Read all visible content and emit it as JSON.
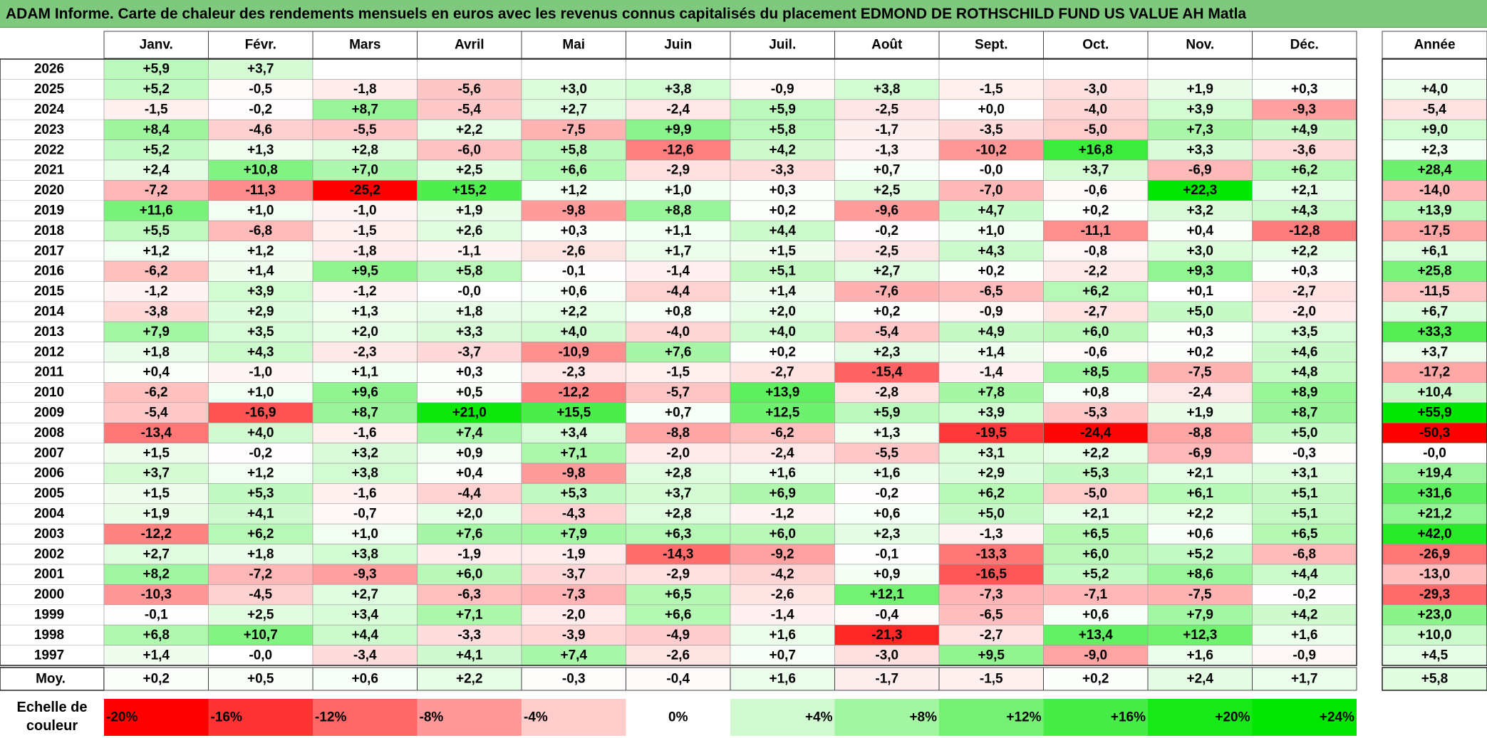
{
  "title": "ADAM Informe. Carte de chaleur des rendements mensuels en euros avec les revenus connus capitalisés du placement EDMOND DE ROTHSCHILD FUND US VALUE AH Matla",
  "year_header": "Année",
  "scale_label": "Echelle de couleur",
  "colors": {
    "negative_max": "#ff0000",
    "positive_max": "#00dd00",
    "neutral": "#ffffff",
    "title_bg": "#7ec97e"
  },
  "chart_data": {
    "type": "heatmap",
    "months": [
      "Janv.",
      "Févr.",
      "Mars",
      "Avril",
      "Mai",
      "Juin",
      "Juil.",
      "Août",
      "Sept.",
      "Oct.",
      "Nov.",
      "Déc."
    ],
    "rows": [
      {
        "year": "2026",
        "values": [
          "+5,9",
          "+3,7",
          "",
          "",
          "",
          "",
          "",
          "",
          "",
          "",
          "",
          ""
        ],
        "annual": ""
      },
      {
        "year": "2025",
        "values": [
          "+5,2",
          "-0,5",
          "-1,8",
          "-5,6",
          "+3,0",
          "+3,8",
          "-0,9",
          "+3,8",
          "-1,5",
          "-3,0",
          "+1,9",
          "+0,3"
        ],
        "annual": "+4,0"
      },
      {
        "year": "2024",
        "values": [
          "-1,5",
          "-0,2",
          "+8,7",
          "-5,4",
          "+2,7",
          "-2,4",
          "+5,9",
          "-2,5",
          "+0,0",
          "-4,0",
          "+3,9",
          "-9,3"
        ],
        "annual": "-5,4"
      },
      {
        "year": "2023",
        "values": [
          "+8,4",
          "-4,6",
          "-5,5",
          "+2,2",
          "-7,5",
          "+9,9",
          "+5,8",
          "-1,7",
          "-3,5",
          "-5,0",
          "+7,3",
          "+4,9"
        ],
        "annual": "+9,0"
      },
      {
        "year": "2022",
        "values": [
          "+5,2",
          "+1,3",
          "+2,8",
          "-6,0",
          "+5,8",
          "-12,6",
          "+4,2",
          "-1,3",
          "-10,2",
          "+16,8",
          "+3,3",
          "-3,6"
        ],
        "annual": "+2,3"
      },
      {
        "year": "2021",
        "values": [
          "+2,4",
          "+10,8",
          "+7,0",
          "+2,5",
          "+6,6",
          "-2,9",
          "-3,3",
          "+0,7",
          "-0,0",
          "+3,7",
          "-6,9",
          "+6,2"
        ],
        "annual": "+28,4"
      },
      {
        "year": "2020",
        "values": [
          "-7,2",
          "-11,3",
          "-25,2",
          "+15,2",
          "+1,2",
          "+1,0",
          "+0,3",
          "+2,5",
          "-7,0",
          "-0,6",
          "+22,3",
          "+2,1"
        ],
        "annual": "-14,0"
      },
      {
        "year": "2019",
        "values": [
          "+11,6",
          "+1,0",
          "-1,0",
          "+1,9",
          "-9,8",
          "+8,8",
          "+0,2",
          "-9,6",
          "+4,7",
          "+0,2",
          "+3,2",
          "+4,3"
        ],
        "annual": "+13,9"
      },
      {
        "year": "2018",
        "values": [
          "+5,5",
          "-6,8",
          "-1,5",
          "+2,6",
          "+0,3",
          "+1,1",
          "+4,4",
          "-0,2",
          "+1,0",
          "-11,1",
          "+0,4",
          "-12,8"
        ],
        "annual": "-17,5"
      },
      {
        "year": "2017",
        "values": [
          "+1,2",
          "+1,2",
          "-1,8",
          "-1,1",
          "-2,6",
          "+1,7",
          "+1,5",
          "-2,5",
          "+4,3",
          "-0,8",
          "+3,0",
          "+2,2"
        ],
        "annual": "+6,1"
      },
      {
        "year": "2016",
        "values": [
          "-6,2",
          "+1,4",
          "+9,5",
          "+5,8",
          "-0,1",
          "-1,4",
          "+5,1",
          "+2,7",
          "+0,2",
          "-2,2",
          "+9,3",
          "+0,3"
        ],
        "annual": "+25,8"
      },
      {
        "year": "2015",
        "values": [
          "-1,2",
          "+3,9",
          "-1,2",
          "-0,0",
          "+0,6",
          "-4,4",
          "+1,4",
          "-7,6",
          "-6,5",
          "+6,2",
          "+0,1",
          "-2,7"
        ],
        "annual": "-11,5"
      },
      {
        "year": "2014",
        "values": [
          "-3,8",
          "+2,9",
          "+1,3",
          "+1,8",
          "+2,2",
          "+0,8",
          "+2,0",
          "+0,2",
          "-0,9",
          "-2,7",
          "+5,0",
          "-2,0"
        ],
        "annual": "+6,7"
      },
      {
        "year": "2013",
        "values": [
          "+7,9",
          "+3,5",
          "+2,0",
          "+3,3",
          "+4,0",
          "-4,0",
          "+4,0",
          "-5,4",
          "+4,9",
          "+6,0",
          "+0,3",
          "+3,5"
        ],
        "annual": "+33,3"
      },
      {
        "year": "2012",
        "values": [
          "+1,8",
          "+4,3",
          "-2,3",
          "-3,7",
          "-10,9",
          "+7,6",
          "+0,2",
          "+2,3",
          "+1,4",
          "-0,6",
          "+0,2",
          "+4,6"
        ],
        "annual": "+3,7"
      },
      {
        "year": "2011",
        "values": [
          "+0,4",
          "-1,0",
          "+1,1",
          "+0,3",
          "-2,3",
          "-1,5",
          "-2,7",
          "-15,4",
          "-1,4",
          "+8,5",
          "-7,5",
          "+4,8"
        ],
        "annual": "-17,2"
      },
      {
        "year": "2010",
        "values": [
          "-6,2",
          "+1,0",
          "+9,6",
          "+0,5",
          "-12,2",
          "-5,7",
          "+13,9",
          "-2,8",
          "+7,8",
          "+0,8",
          "-2,4",
          "+8,9"
        ],
        "annual": "+10,4"
      },
      {
        "year": "2009",
        "values": [
          "-5,4",
          "-16,9",
          "+8,7",
          "+21,0",
          "+15,5",
          "+0,7",
          "+12,5",
          "+5,9",
          "+3,9",
          "-5,3",
          "+1,9",
          "+8,7"
        ],
        "annual": "+55,9"
      },
      {
        "year": "2008",
        "values": [
          "-13,4",
          "+4,0",
          "-1,6",
          "+7,4",
          "+3,4",
          "-8,8",
          "-6,2",
          "+1,3",
          "-19,5",
          "-24,4",
          "-8,8",
          "+5,0"
        ],
        "annual": "-50,3"
      },
      {
        "year": "2007",
        "values": [
          "+1,5",
          "-0,2",
          "+3,2",
          "+0,9",
          "+7,1",
          "-2,0",
          "-2,4",
          "-5,5",
          "+3,1",
          "+2,2",
          "-6,9",
          "-0,3"
        ],
        "annual": "-0,0"
      },
      {
        "year": "2006",
        "values": [
          "+3,7",
          "+1,2",
          "+3,8",
          "+0,4",
          "-9,8",
          "+2,8",
          "+1,6",
          "+1,6",
          "+2,9",
          "+5,3",
          "+2,1",
          "+3,1"
        ],
        "annual": "+19,4"
      },
      {
        "year": "2005",
        "values": [
          "+1,5",
          "+5,3",
          "-1,6",
          "-4,4",
          "+5,3",
          "+3,7",
          "+6,9",
          "-0,2",
          "+6,2",
          "-5,0",
          "+6,1",
          "+5,1"
        ],
        "annual": "+31,6"
      },
      {
        "year": "2004",
        "values": [
          "+1,9",
          "+4,1",
          "-0,7",
          "+2,0",
          "-4,3",
          "+2,8",
          "-1,2",
          "+0,6",
          "+5,0",
          "+2,1",
          "+2,2",
          "+5,1"
        ],
        "annual": "+21,2"
      },
      {
        "year": "2003",
        "values": [
          "-12,2",
          "+6,2",
          "+1,0",
          "+7,6",
          "+7,9",
          "+6,3",
          "+6,0",
          "+2,3",
          "-1,3",
          "+6,5",
          "+0,6",
          "+6,5"
        ],
        "annual": "+42,0"
      },
      {
        "year": "2002",
        "values": [
          "+2,7",
          "+1,8",
          "+3,8",
          "-1,9",
          "-1,9",
          "-14,3",
          "-9,2",
          "-0,1",
          "-13,3",
          "+6,0",
          "+5,2",
          "-6,8"
        ],
        "annual": "-26,9"
      },
      {
        "year": "2001",
        "values": [
          "+8,2",
          "-7,2",
          "-9,3",
          "+6,0",
          "-3,7",
          "-2,9",
          "-4,2",
          "+0,9",
          "-16,5",
          "+5,2",
          "+8,6",
          "+4,4"
        ],
        "annual": "-13,0"
      },
      {
        "year": "2000",
        "values": [
          "-10,3",
          "-4,5",
          "+2,7",
          "-6,3",
          "-7,3",
          "+6,5",
          "-2,6",
          "+12,1",
          "-7,3",
          "-7,1",
          "-7,5",
          "-0,2"
        ],
        "annual": "-29,3"
      },
      {
        "year": "1999",
        "values": [
          "-0,1",
          "+2,5",
          "+3,4",
          "+7,1",
          "-2,0",
          "+6,6",
          "-1,4",
          "-0,4",
          "-6,5",
          "+0,6",
          "+7,9",
          "+4,2"
        ],
        "annual": "+23,0"
      },
      {
        "year": "1998",
        "values": [
          "+6,8",
          "+10,7",
          "+4,4",
          "-3,3",
          "-3,9",
          "-4,9",
          "+1,6",
          "-21,3",
          "-2,7",
          "+13,4",
          "+12,3",
          "+1,6"
        ],
        "annual": "+10,0"
      },
      {
        "year": "1997",
        "values": [
          "+1,4",
          "-0,0",
          "-3,4",
          "+4,1",
          "+7,4",
          "-2,6",
          "+0,7",
          "-3,0",
          "+9,5",
          "-9,0",
          "+1,6",
          "-0,9"
        ],
        "annual": "+4,5"
      }
    ],
    "average": {
      "label": "Moy.",
      "values": [
        "+0,2",
        "+0,5",
        "+0,6",
        "+2,2",
        "-0,3",
        "-0,4",
        "+1,6",
        "-1,7",
        "-1,5",
        "+0,2",
        "+2,4",
        "+1,7"
      ],
      "annual": "+5,8"
    },
    "scale": [
      "-20%",
      "-16%",
      "-12%",
      "-8%",
      "-4%",
      "0%",
      "+4%",
      "+8%",
      "+12%",
      "+16%",
      "+20%",
      "+24%"
    ]
  }
}
